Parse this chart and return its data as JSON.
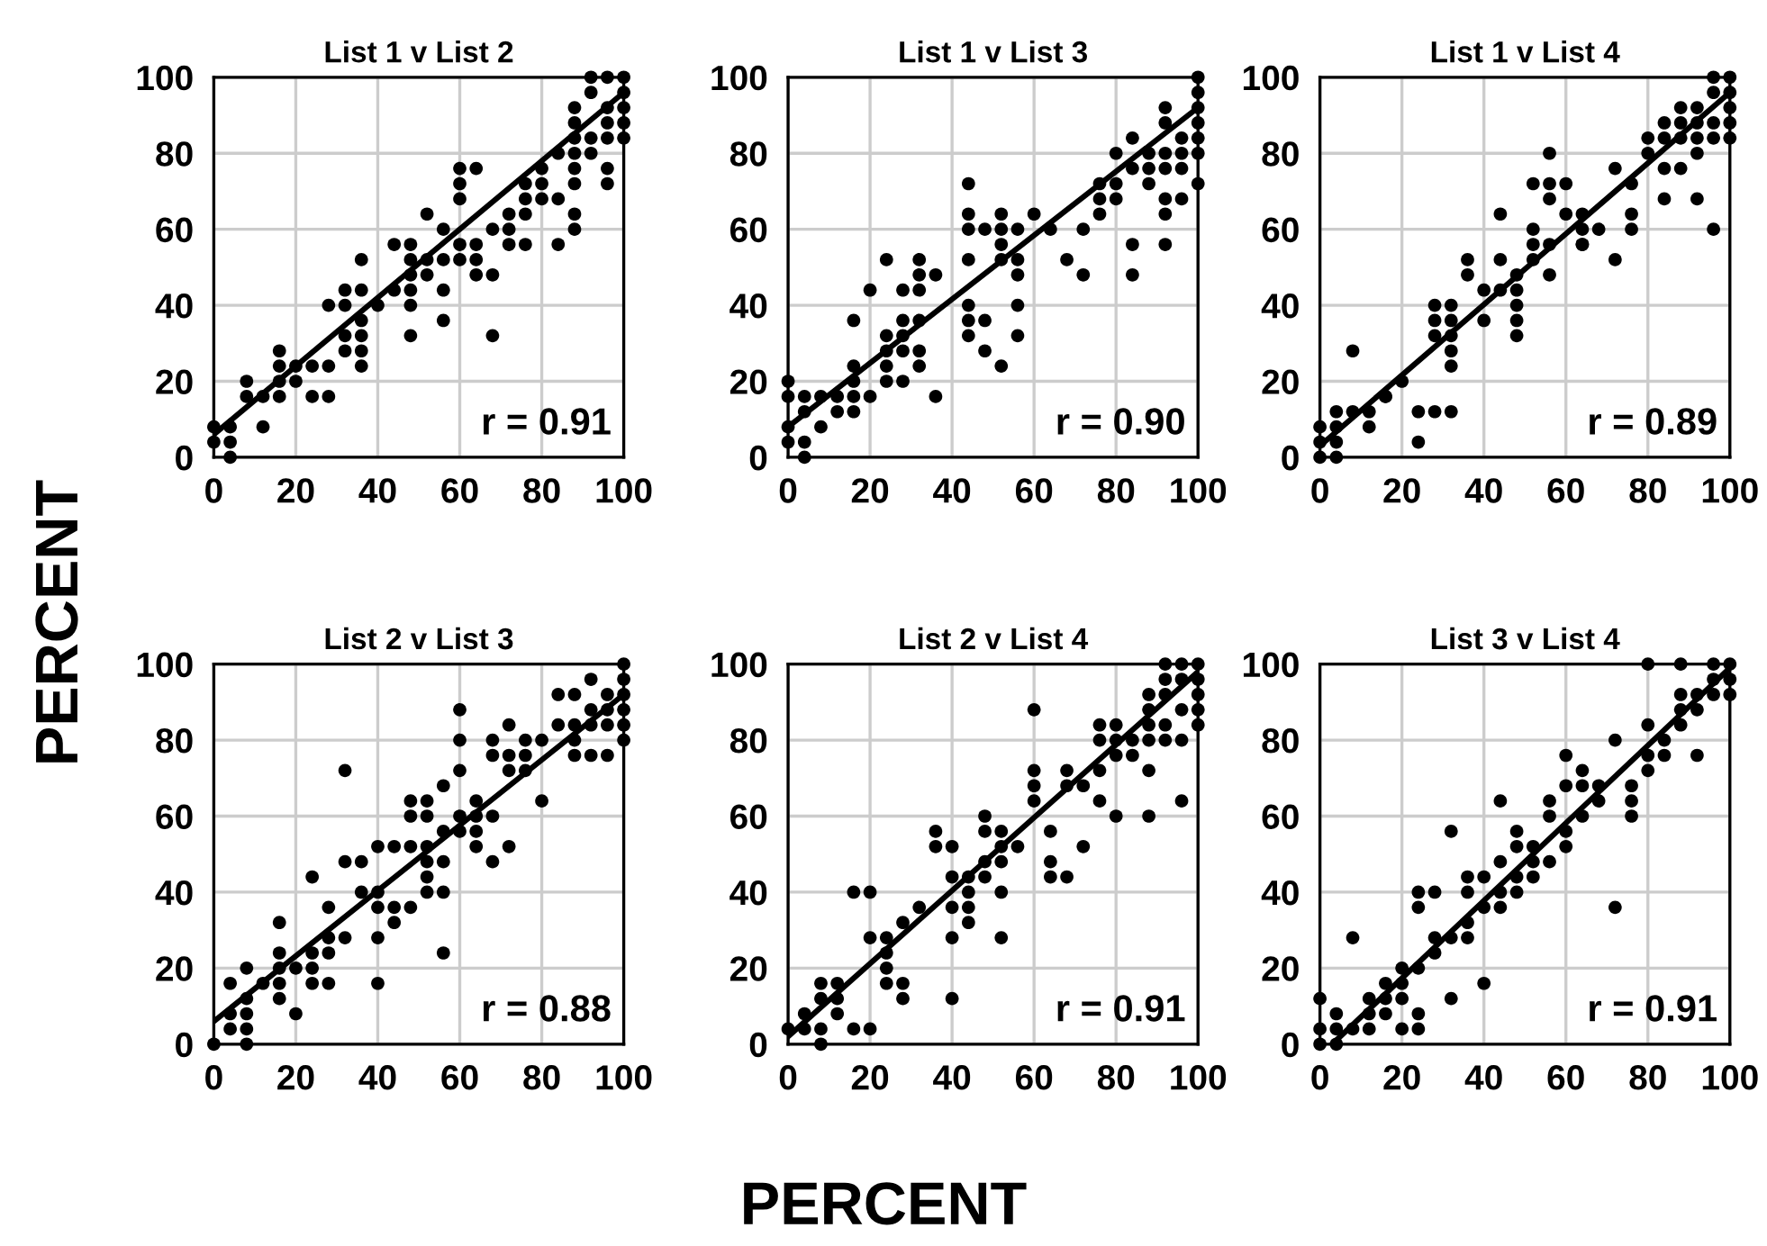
{
  "chart_data": [
    {
      "type": "scatter",
      "title": "List 1 v List 2",
      "ylabel": "PERCENT",
      "xlim": [
        0,
        100
      ],
      "ylim": [
        0,
        100
      ],
      "xticks": [
        0,
        20,
        40,
        60,
        80,
        100
      ],
      "yticks": [
        0,
        20,
        40,
        60,
        80,
        100
      ],
      "grid": true,
      "marker": "circle",
      "annotations": [
        "r = 0.91"
      ],
      "series": [
        {
          "color": "#000000",
          "x": [
            0,
            0,
            4,
            4,
            4,
            8,
            8,
            12,
            12,
            16,
            16,
            16,
            16,
            20,
            20,
            24,
            24,
            28,
            28,
            28,
            32,
            32,
            32,
            32,
            36,
            36,
            36,
            36,
            36,
            36,
            40,
            44,
            44,
            48,
            48,
            48,
            48,
            48,
            48,
            52,
            52,
            52,
            56,
            56,
            56,
            56,
            60,
            60,
            60,
            60,
            60,
            64,
            64,
            64,
            64,
            68,
            68,
            68,
            72,
            72,
            72,
            76,
            76,
            76,
            76,
            80,
            80,
            80,
            84,
            84,
            84,
            88,
            88,
            88,
            88,
            88,
            88,
            88,
            88,
            92,
            92,
            92,
            92,
            96,
            96,
            96,
            96,
            96,
            96,
            100,
            100,
            100,
            100,
            100
          ],
          "values": [
            8,
            4,
            8,
            4,
            0,
            20,
            16,
            8,
            16,
            16,
            20,
            24,
            28,
            24,
            20,
            24,
            16,
            16,
            24,
            40,
            40,
            44,
            32,
            28,
            44,
            36,
            32,
            28,
            24,
            52,
            40,
            56,
            44,
            56,
            52,
            48,
            44,
            40,
            32,
            64,
            52,
            48,
            60,
            52,
            44,
            36,
            76,
            72,
            68,
            56,
            52,
            76,
            56,
            52,
            48,
            48,
            60,
            32,
            64,
            60,
            56,
            72,
            68,
            64,
            56,
            76,
            72,
            68,
            68,
            56,
            80,
            80,
            76,
            72,
            64,
            60,
            84,
            88,
            92,
            84,
            80,
            96,
            100,
            100,
            92,
            88,
            84,
            76,
            72,
            100,
            96,
            92,
            88,
            84
          ]
        },
        {
          "type": "line",
          "color": "#000000",
          "marker": "none",
          "x": [
            0,
            100
          ],
          "values": [
            6,
            96
          ]
        }
      ]
    },
    {
      "type": "scatter",
      "title": "List 1 v List 3",
      "xlim": [
        0,
        100
      ],
      "ylim": [
        0,
        100
      ],
      "xticks": [
        0,
        20,
        40,
        60,
        80,
        100
      ],
      "yticks": [
        0,
        20,
        40,
        60,
        80,
        100
      ],
      "grid": true,
      "marker": "circle",
      "annotations": [
        "r = 0.90"
      ],
      "series": [
        {
          "color": "#000000",
          "x": [
            0,
            0,
            0,
            0,
            4,
            4,
            4,
            4,
            8,
            8,
            12,
            12,
            16,
            16,
            16,
            16,
            16,
            20,
            20,
            24,
            24,
            24,
            24,
            24,
            28,
            28,
            28,
            28,
            28,
            32,
            32,
            32,
            32,
            32,
            32,
            36,
            36,
            44,
            44,
            44,
            44,
            44,
            44,
            44,
            48,
            48,
            48,
            52,
            52,
            52,
            52,
            52,
            56,
            56,
            56,
            56,
            56,
            60,
            64,
            68,
            72,
            72,
            76,
            76,
            76,
            80,
            80,
            80,
            84,
            84,
            84,
            84,
            88,
            88,
            88,
            92,
            92,
            92,
            92,
            92,
            92,
            92,
            96,
            96,
            96,
            96,
            100,
            100,
            100,
            100,
            100,
            100,
            100
          ],
          "values": [
            20,
            16,
            8,
            4,
            16,
            12,
            4,
            0,
            16,
            8,
            16,
            12,
            16,
            12,
            20,
            24,
            36,
            16,
            44,
            28,
            52,
            32,
            24,
            20,
            32,
            36,
            44,
            28,
            20,
            52,
            48,
            44,
            36,
            28,
            24,
            48,
            16,
            64,
            60,
            52,
            40,
            36,
            32,
            72,
            60,
            36,
            28,
            64,
            60,
            56,
            52,
            24,
            60,
            52,
            48,
            40,
            32,
            64,
            60,
            52,
            60,
            48,
            72,
            68,
            64,
            72,
            68,
            80,
            84,
            76,
            56,
            48,
            80,
            76,
            72,
            92,
            88,
            80,
            76,
            68,
            64,
            56,
            84,
            80,
            76,
            68,
            92,
            88,
            84,
            80,
            72,
            96,
            100
          ]
        },
        {
          "type": "line",
          "color": "#000000",
          "marker": "none",
          "x": [
            0,
            100
          ],
          "values": [
            8,
            92
          ]
        }
      ]
    },
    {
      "type": "scatter",
      "title": "List 1 v List 4",
      "xlim": [
        0,
        100
      ],
      "ylim": [
        0,
        100
      ],
      "xticks": [
        0,
        20,
        40,
        60,
        80,
        100
      ],
      "yticks": [
        0,
        20,
        40,
        60,
        80,
        100
      ],
      "grid": true,
      "marker": "circle",
      "annotations": [
        "r = 0.89"
      ],
      "series": [
        {
          "color": "#000000",
          "x": [
            0,
            0,
            0,
            4,
            4,
            4,
            4,
            8,
            8,
            12,
            12,
            16,
            16,
            20,
            24,
            24,
            28,
            28,
            28,
            28,
            32,
            32,
            32,
            32,
            32,
            32,
            36,
            36,
            40,
            40,
            44,
            44,
            44,
            48,
            48,
            48,
            48,
            48,
            52,
            52,
            52,
            52,
            56,
            56,
            56,
            56,
            56,
            60,
            60,
            64,
            64,
            64,
            68,
            72,
            72,
            76,
            76,
            76,
            80,
            80,
            84,
            84,
            84,
            84,
            88,
            88,
            88,
            88,
            92,
            92,
            92,
            92,
            96,
            96,
            96,
            96,
            100,
            100,
            100,
            100,
            100,
            96,
            92,
            64
          ],
          "values": [
            8,
            4,
            0,
            12,
            8,
            4,
            0,
            12,
            28,
            12,
            8,
            16,
            16,
            20,
            12,
            4,
            40,
            36,
            32,
            12,
            36,
            32,
            28,
            24,
            12,
            40,
            52,
            48,
            44,
            36,
            64,
            52,
            44,
            48,
            44,
            40,
            36,
            32,
            52,
            56,
            60,
            72,
            80,
            68,
            56,
            48,
            72,
            64,
            72,
            60,
            56,
            56,
            60,
            52,
            76,
            72,
            64,
            60,
            84,
            80,
            88,
            84,
            76,
            68,
            92,
            88,
            84,
            76,
            92,
            88,
            84,
            80,
            100,
            96,
            88,
            84,
            100,
            96,
            92,
            88,
            84,
            60,
            68,
            64
          ]
        },
        {
          "type": "line",
          "color": "#000000",
          "marker": "none",
          "x": [
            0,
            100
          ],
          "values": [
            3,
            96
          ]
        }
      ]
    },
    {
      "type": "scatter",
      "title": "List 2 v List 3",
      "xlim": [
        0,
        100
      ],
      "ylim": [
        0,
        100
      ],
      "xticks": [
        0,
        20,
        40,
        60,
        80,
        100
      ],
      "yticks": [
        0,
        20,
        40,
        60,
        80,
        100
      ],
      "grid": true,
      "marker": "circle",
      "annotations": [
        "r = 0.88"
      ],
      "series": [
        {
          "color": "#000000",
          "x": [
            0,
            4,
            4,
            4,
            8,
            8,
            8,
            8,
            8,
            12,
            16,
            16,
            16,
            16,
            16,
            20,
            20,
            24,
            24,
            24,
            24,
            28,
            28,
            28,
            28,
            32,
            32,
            32,
            36,
            36,
            40,
            40,
            40,
            40,
            40,
            44,
            44,
            44,
            48,
            48,
            48,
            48,
            52,
            52,
            52,
            52,
            52,
            52,
            56,
            56,
            56,
            56,
            56,
            60,
            60,
            60,
            60,
            60,
            64,
            64,
            64,
            64,
            68,
            68,
            68,
            68,
            72,
            72,
            72,
            72,
            76,
            76,
            76,
            80,
            80,
            84,
            84,
            88,
            88,
            88,
            88,
            92,
            92,
            92,
            92,
            96,
            96,
            96,
            96,
            100,
            100,
            100,
            100,
            100,
            100
          ],
          "values": [
            0,
            4,
            8,
            16,
            0,
            4,
            8,
            12,
            20,
            16,
            12,
            16,
            20,
            24,
            32,
            20,
            8,
            16,
            20,
            24,
            44,
            16,
            24,
            28,
            36,
            72,
            28,
            48,
            48,
            40,
            52,
            40,
            36,
            28,
            16,
            52,
            36,
            32,
            52,
            60,
            64,
            36,
            64,
            60,
            52,
            48,
            44,
            40,
            56,
            48,
            40,
            24,
            68,
            60,
            56,
            72,
            80,
            88,
            52,
            56,
            60,
            64,
            48,
            60,
            76,
            80,
            72,
            76,
            84,
            52,
            72,
            76,
            80,
            80,
            64,
            84,
            92,
            92,
            84,
            80,
            76,
            96,
            88,
            84,
            76,
            92,
            88,
            84,
            76,
            100,
            96,
            92,
            88,
            84,
            80
          ]
        },
        {
          "type": "line",
          "color": "#000000",
          "marker": "none",
          "x": [
            0,
            100
          ],
          "values": [
            6,
            92
          ]
        }
      ]
    },
    {
      "type": "scatter",
      "title": "List 2 v List 4",
      "xlabel": "PERCENT",
      "xlim": [
        0,
        100
      ],
      "ylim": [
        0,
        100
      ],
      "xticks": [
        0,
        20,
        40,
        60,
        80,
        100
      ],
      "yticks": [
        0,
        20,
        40,
        60,
        80,
        100
      ],
      "grid": true,
      "marker": "circle",
      "annotations": [
        "r = 0.91"
      ],
      "series": [
        {
          "color": "#000000",
          "x": [
            0,
            4,
            4,
            8,
            8,
            8,
            8,
            12,
            12,
            12,
            16,
            20,
            16,
            20,
            20,
            24,
            24,
            24,
            24,
            28,
            28,
            28,
            32,
            36,
            36,
            40,
            40,
            40,
            40,
            40,
            44,
            44,
            44,
            44,
            48,
            48,
            48,
            48,
            52,
            52,
            52,
            52,
            52,
            56,
            60,
            60,
            60,
            64,
            64,
            64,
            68,
            68,
            68,
            72,
            72,
            76,
            76,
            76,
            76,
            80,
            80,
            80,
            80,
            84,
            84,
            88,
            88,
            88,
            88,
            88,
            88,
            92,
            92,
            92,
            92,
            92,
            96,
            96,
            96,
            96,
            96,
            100,
            100,
            100,
            100,
            100,
            60
          ],
          "values": [
            4,
            4,
            8,
            0,
            4,
            12,
            16,
            16,
            12,
            8,
            4,
            4,
            40,
            40,
            28,
            28,
            24,
            20,
            16,
            32,
            16,
            12,
            36,
            56,
            52,
            52,
            44,
            36,
            28,
            12,
            44,
            40,
            36,
            32,
            60,
            56,
            48,
            44,
            56,
            52,
            48,
            40,
            28,
            52,
            72,
            68,
            64,
            56,
            48,
            44,
            44,
            72,
            68,
            52,
            68,
            84,
            80,
            72,
            64,
            84,
            80,
            76,
            60,
            80,
            76,
            92,
            88,
            84,
            80,
            72,
            60,
            100,
            96,
            92,
            84,
            80,
            100,
            96,
            88,
            80,
            64,
            100,
            96,
            92,
            88,
            84,
            88
          ]
        },
        {
          "type": "line",
          "color": "#000000",
          "marker": "none",
          "x": [
            0,
            100
          ],
          "values": [
            2,
            98
          ]
        }
      ]
    },
    {
      "type": "scatter",
      "title": "List 3 v List 4",
      "xlim": [
        0,
        100
      ],
      "ylim": [
        0,
        100
      ],
      "xticks": [
        0,
        20,
        40,
        60,
        80,
        100
      ],
      "yticks": [
        0,
        20,
        40,
        60,
        80,
        100
      ],
      "grid": true,
      "marker": "circle",
      "annotations": [
        "r = 0.91"
      ],
      "series": [
        {
          "color": "#000000",
          "x": [
            0,
            0,
            0,
            4,
            4,
            4,
            8,
            8,
            12,
            12,
            12,
            16,
            16,
            16,
            20,
            20,
            20,
            20,
            24,
            24,
            24,
            24,
            24,
            28,
            28,
            28,
            32,
            32,
            32,
            36,
            36,
            36,
            36,
            40,
            40,
            40,
            44,
            44,
            44,
            44,
            48,
            48,
            48,
            48,
            52,
            52,
            52,
            56,
            56,
            56,
            60,
            60,
            60,
            60,
            64,
            64,
            64,
            68,
            68,
            72,
            72,
            76,
            76,
            76,
            80,
            80,
            80,
            80,
            84,
            84,
            88,
            88,
            88,
            88,
            92,
            92,
            92,
            96,
            96,
            96,
            100,
            100,
            100
          ],
          "values": [
            12,
            4,
            0,
            8,
            4,
            0,
            28,
            4,
            12,
            8,
            4,
            16,
            12,
            8,
            20,
            16,
            12,
            4,
            40,
            36,
            20,
            8,
            4,
            40,
            28,
            24,
            56,
            28,
            12,
            44,
            40,
            32,
            28,
            44,
            36,
            16,
            64,
            48,
            40,
            36,
            56,
            52,
            44,
            40,
            52,
            48,
            44,
            64,
            60,
            48,
            76,
            68,
            56,
            52,
            72,
            68,
            60,
            68,
            64,
            80,
            36,
            68,
            64,
            60,
            100,
            84,
            76,
            72,
            80,
            76,
            100,
            92,
            88,
            84,
            92,
            88,
            76,
            100,
            96,
            92,
            100,
            96,
            92
          ]
        },
        {
          "type": "line",
          "color": "#000000",
          "marker": "none",
          "x": [
            3,
            100
          ],
          "values": [
            0,
            99
          ]
        }
      ]
    }
  ]
}
